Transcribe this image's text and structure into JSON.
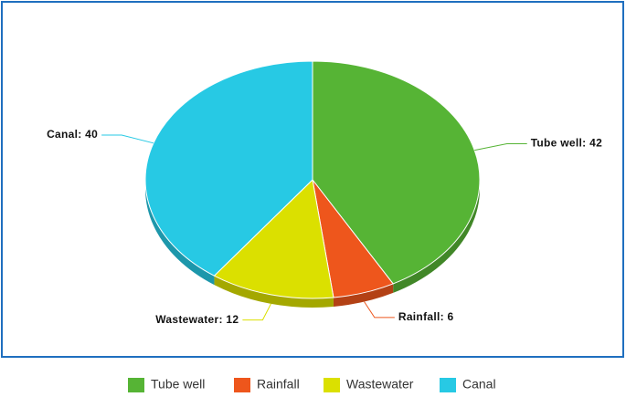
{
  "chart_data": {
    "type": "pie3d",
    "categories": [
      "Tube well",
      "Rainfall",
      "Wastewater",
      "Canal"
    ],
    "values": [
      42,
      6,
      12,
      40
    ],
    "value_labels": [
      "Tube well: 42",
      "Rainfall: 6",
      "Wastewater: 12",
      "Canal: 40"
    ],
    "colors": [
      "#56b435",
      "#ee561c",
      "#dbe000",
      "#27c9e4"
    ],
    "legend": "bottom"
  }
}
